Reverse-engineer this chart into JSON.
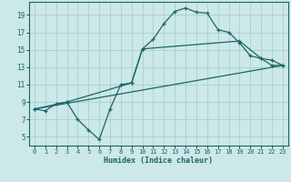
{
  "xlabel": "Humidex (Indice chaleur)",
  "xlim": [
    -0.5,
    23.5
  ],
  "ylim": [
    4,
    20.5
  ],
  "xticks": [
    0,
    1,
    2,
    3,
    4,
    5,
    6,
    7,
    8,
    9,
    10,
    11,
    12,
    13,
    14,
    15,
    16,
    17,
    18,
    19,
    20,
    21,
    22,
    23
  ],
  "yticks": [
    5,
    7,
    9,
    11,
    13,
    15,
    17,
    19
  ],
  "bg_color": "#cce8e8",
  "grid_color": "#aacece",
  "line_color": "#1a6666",
  "line1_x": [
    0,
    1,
    2,
    3,
    4,
    5,
    6,
    7,
    8,
    9,
    10,
    11,
    12,
    13,
    14,
    15,
    16,
    17,
    18,
    19,
    20,
    21,
    22,
    23
  ],
  "line1_y": [
    8.2,
    8.0,
    8.8,
    9.0,
    7.0,
    5.8,
    4.7,
    8.2,
    11.0,
    11.2,
    15.1,
    16.2,
    18.0,
    19.4,
    19.8,
    19.3,
    19.2,
    17.3,
    17.0,
    15.8,
    14.3,
    14.0,
    13.2,
    13.2
  ],
  "line2_x": [
    0,
    3,
    9,
    10,
    19,
    21,
    22,
    23
  ],
  "line2_y": [
    8.2,
    9.0,
    11.2,
    15.1,
    16.0,
    14.0,
    13.8,
    13.2
  ],
  "line3_x": [
    0,
    23
  ],
  "line3_y": [
    8.2,
    13.2
  ]
}
